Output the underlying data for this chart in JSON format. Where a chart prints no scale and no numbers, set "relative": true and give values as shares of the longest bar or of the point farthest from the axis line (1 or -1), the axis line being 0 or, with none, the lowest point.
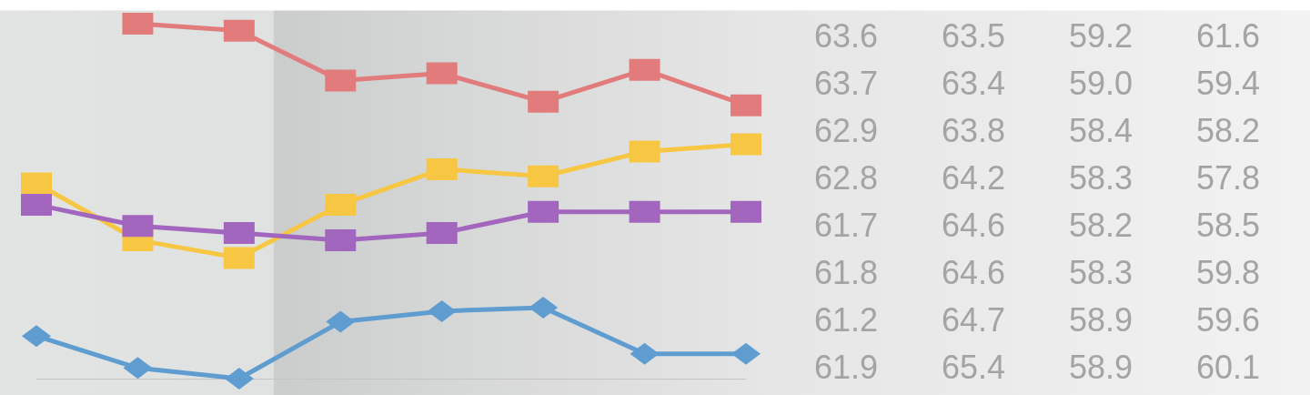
{
  "chart_data": {
    "type": "line",
    "relative": true,
    "marker": "square",
    "line_style": "solid",
    "categories": [
      null,
      null,
      null,
      null,
      null,
      null,
      null,
      null
    ],
    "series": [
      {
        "color": "#e27c7c",
        "values": [
          null,
          1.0,
          0.98,
          0.84,
          0.86,
          0.78,
          0.87,
          0.77
        ]
      },
      {
        "color": "#f7c744",
        "values": [
          0.55,
          0.39,
          0.34,
          0.49,
          0.59,
          0.57,
          0.64,
          0.66
        ]
      },
      {
        "color": "#a366be",
        "values": [
          0.49,
          0.43,
          0.41,
          0.39,
          0.41,
          0.47,
          0.47,
          0.47
        ]
      },
      {
        "color": "#5f9dd1",
        "marker": "diamond",
        "values": [
          0.12,
          0.03,
          0.0,
          0.16,
          0.19,
          0.2,
          0.07,
          0.07
        ]
      }
    ],
    "annotations": [
      "63.6",
      "63.5",
      "59.2",
      "61.6",
      "63.7",
      "63.4",
      "59.0",
      "59.4",
      "62.9",
      "63.8",
      "58.4",
      "58.2",
      "62.8",
      "64.2",
      "58.3",
      "57.8",
      "61.7",
      "64.6",
      "58.2",
      "58.5",
      "61.8",
      "64.6",
      "58.3",
      "59.8",
      "61.2",
      "64.7",
      "58.9",
      "59.6",
      "61.9",
      "65.4",
      "58.9",
      "60.1"
    ]
  }
}
